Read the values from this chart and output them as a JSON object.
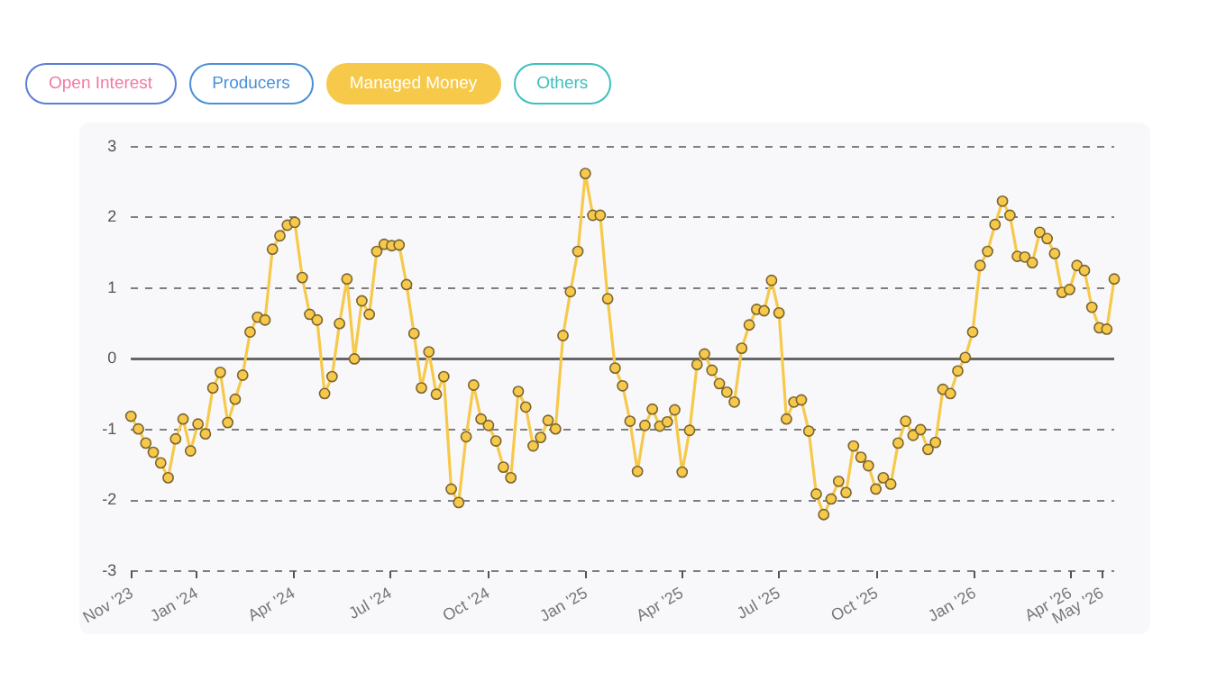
{
  "chart_data": {
    "type": "line",
    "annotations": [
      "Open Interest",
      "Producers",
      "Others"
    ],
    "x": [
      "2023-10-31",
      "2023-11-07",
      "2023-11-14",
      "2023-11-21",
      "2023-11-28",
      "2023-12-05",
      "2023-12-12",
      "2023-12-19",
      "2023-12-26",
      "2024-01-02",
      "2024-01-09",
      "2024-01-16",
      "2024-01-23",
      "2024-01-30",
      "2024-02-06",
      "2024-02-13",
      "2024-02-20",
      "2024-02-27",
      "2024-03-05",
      "2024-03-12",
      "2024-03-19",
      "2024-03-26",
      "2024-04-02",
      "2024-04-09",
      "2024-04-16",
      "2024-04-23",
      "2024-04-30",
      "2024-05-07",
      "2024-05-14",
      "2024-05-21",
      "2024-05-28",
      "2024-06-04",
      "2024-06-11",
      "2024-06-18",
      "2024-06-25",
      "2024-07-02",
      "2024-07-09",
      "2024-07-16",
      "2024-07-23",
      "2024-07-30",
      "2024-08-06",
      "2024-08-13",
      "2024-08-20",
      "2024-08-27",
      "2024-09-03",
      "2024-09-10",
      "2024-09-17",
      "2024-09-24",
      "2024-10-01",
      "2024-10-08",
      "2024-10-15",
      "2024-10-22",
      "2024-10-29",
      "2024-11-05",
      "2024-11-12",
      "2024-11-19",
      "2024-11-26",
      "2024-12-03",
      "2024-12-10",
      "2024-12-17",
      "2024-12-24",
      "2024-12-31",
      "2025-01-07",
      "2025-01-14",
      "2025-01-21",
      "2025-01-28",
      "2025-02-04",
      "2025-02-11",
      "2025-02-18",
      "2025-02-25",
      "2025-03-04",
      "2025-03-11",
      "2025-03-18",
      "2025-03-25",
      "2025-04-01",
      "2025-04-08",
      "2025-04-15",
      "2025-04-22",
      "2025-04-29",
      "2025-05-06",
      "2025-05-13",
      "2025-05-20",
      "2025-05-27",
      "2025-06-03",
      "2025-06-10",
      "2025-06-17",
      "2025-06-24",
      "2025-07-01",
      "2025-07-08",
      "2025-07-15",
      "2025-07-22",
      "2025-07-29",
      "2025-08-05",
      "2025-08-12",
      "2025-08-19",
      "2025-08-26",
      "2025-09-02",
      "2025-09-09",
      "2025-09-16",
      "2025-09-23",
      "2025-09-30",
      "2025-10-07",
      "2025-10-14",
      "2025-10-21",
      "2025-10-28",
      "2025-11-04",
      "2025-11-11",
      "2025-11-18",
      "2025-11-25",
      "2025-12-02",
      "2025-12-09",
      "2025-12-16",
      "2025-12-23",
      "2025-12-30",
      "2026-01-06",
      "2026-01-13",
      "2026-01-20",
      "2026-01-27",
      "2026-02-03",
      "2026-02-10",
      "2026-02-17",
      "2026-02-24",
      "2026-03-03",
      "2026-03-10",
      "2026-03-17",
      "2026-03-24",
      "2026-03-31",
      "2026-04-07",
      "2026-04-14",
      "2026-04-21",
      "2026-04-28",
      "2026-05-05",
      "2026-05-12"
    ],
    "series": [
      {
        "name": "Managed Money",
        "color": "#f7c94a",
        "values": [
          -0.81,
          -0.99,
          -1.19,
          -1.32,
          -1.47,
          -1.68,
          -1.13,
          -0.85,
          -1.3,
          -0.92,
          -1.06,
          -0.41,
          -0.19,
          -0.9,
          -0.57,
          -0.23,
          0.38,
          0.59,
          0.55,
          1.55,
          1.74,
          1.89,
          1.93,
          1.15,
          0.63,
          0.55,
          -0.49,
          -0.25,
          0.5,
          1.13,
          0.0,
          0.82,
          0.63,
          1.52,
          1.62,
          1.6,
          1.61,
          1.05,
          0.36,
          -0.41,
          0.1,
          -0.5,
          -0.25,
          -1.84,
          -2.03,
          -1.1,
          -0.37,
          -0.85,
          -0.94,
          -1.16,
          -1.53,
          -1.68,
          -0.46,
          -0.68,
          -1.23,
          -1.11,
          -0.87,
          -0.99,
          0.33,
          0.95,
          1.52,
          2.62,
          2.03,
          2.03,
          0.85,
          -0.13,
          -0.38,
          -0.88,
          -1.59,
          -0.94,
          -0.71,
          -0.95,
          -0.89,
          -0.72,
          -1.6,
          -1.01,
          -0.08,
          0.07,
          -0.16,
          -0.35,
          -0.47,
          -0.61,
          0.15,
          0.48,
          0.7,
          0.68,
          1.11,
          0.65,
          -0.85,
          -0.61,
          -0.58,
          -1.02,
          -1.91,
          -2.2,
          -1.98,
          -1.73,
          -1.89,
          -1.23,
          -1.39,
          -1.51,
          -1.84,
          -1.68,
          -1.77,
          -1.19,
          -0.88,
          -1.08,
          -1.0,
          -1.28,
          -1.18,
          -0.43,
          -0.49,
          -0.17,
          0.02,
          0.38,
          1.32,
          1.52,
          1.9,
          2.23,
          2.03,
          1.45,
          1.44,
          1.36,
          1.79,
          1.7,
          1.49,
          0.94,
          0.98,
          1.32,
          1.25,
          0.73,
          0.44,
          0.42,
          1.13
        ]
      }
    ],
    "xlim": [
      "2023-10-31",
      "2026-05-12"
    ],
    "xticks": [
      {
        "value": "2023-11-01",
        "label": "Nov '23"
      },
      {
        "value": "2024-01-01",
        "label": "Jan '24"
      },
      {
        "value": "2024-04-01",
        "label": "Apr '24"
      },
      {
        "value": "2024-07-01",
        "label": "Jul '24"
      },
      {
        "value": "2024-10-01",
        "label": "Oct '24"
      },
      {
        "value": "2025-01-01",
        "label": "Jan '25"
      },
      {
        "value": "2025-04-01",
        "label": "Apr '25"
      },
      {
        "value": "2025-07-01",
        "label": "Jul '25"
      },
      {
        "value": "2025-10-01",
        "label": "Oct '25"
      },
      {
        "value": "2026-01-01",
        "label": "Jan '26"
      },
      {
        "value": "2026-04-01",
        "label": "Apr '26"
      },
      {
        "value": "2026-05-01",
        "label": "May '26"
      }
    ],
    "ylim": [
      -3,
      3
    ],
    "yticks": [
      -3,
      -2,
      -1,
      0,
      1,
      2,
      3
    ],
    "ref_lines": [
      {
        "axis": "y",
        "value": 0,
        "color": "#666666"
      }
    ],
    "grid": "y",
    "legend": "top left",
    "marker": "circle",
    "line_style": "solid"
  }
}
